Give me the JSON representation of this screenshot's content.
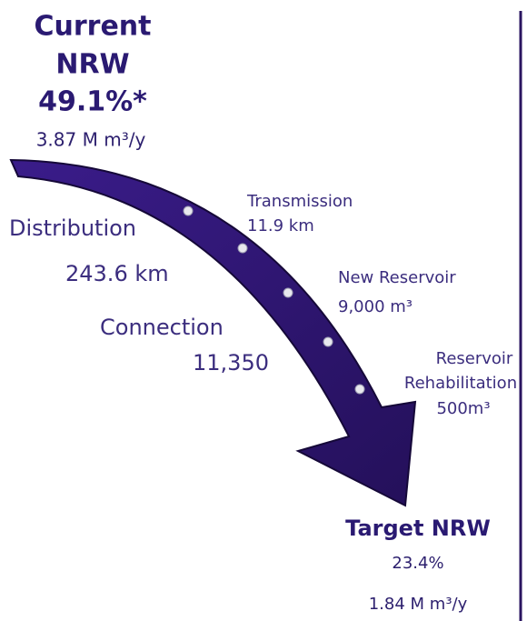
{
  "current": {
    "title_line1": "Current",
    "title_line2": "NRW",
    "value": "49.1%*",
    "volume": "3.87 M m³/y"
  },
  "labels": [
    {
      "name": "Distribution",
      "value": "243.6 km"
    },
    {
      "name": "Connection",
      "value": "11,350"
    },
    {
      "name": "Transmission",
      "value": "11.9 km"
    },
    {
      "name": "New Reservoir",
      "value": "9,000 m³"
    },
    {
      "name_line1": "Reservoir",
      "name_line2": "Rehabilitation",
      "value": "500m³"
    }
  ],
  "target": {
    "title": "Target NRW",
    "value": "23.4%",
    "volume": "1.84 M m³/y"
  }
}
